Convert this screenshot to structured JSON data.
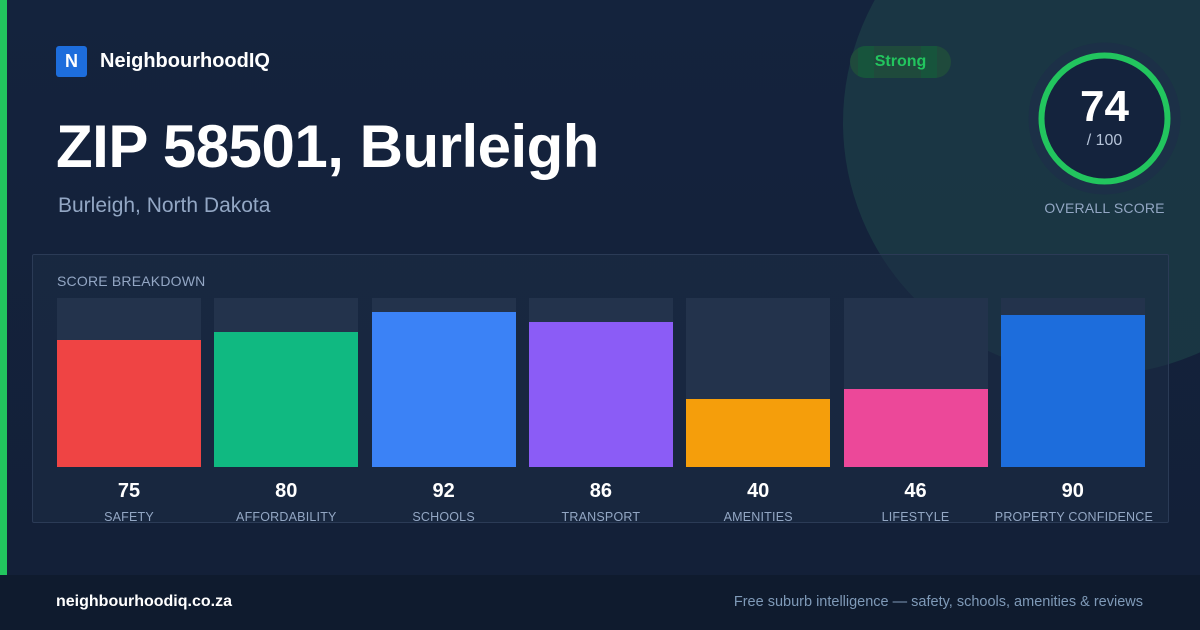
{
  "brand": {
    "logo_letter": "N",
    "name": "NeighbourhoodIQ"
  },
  "header": {
    "title": "ZIP 58501, Burleigh",
    "subtitle": "Burleigh, North Dakota"
  },
  "badge": {
    "label": "Strong"
  },
  "overall": {
    "value": 74,
    "value_text": "74",
    "max_text": "/ 100",
    "max": 100,
    "label": "OVERALL SCORE",
    "ring_color": "#22c55e"
  },
  "breakdown": {
    "title": "SCORE BREAKDOWN"
  },
  "chart_data": {
    "type": "bar",
    "title": "SCORE BREAKDOWN",
    "categories": [
      "SAFETY",
      "AFFORDABILITY",
      "SCHOOLS",
      "TRANSPORT",
      "AMENITIES",
      "LIFESTYLE",
      "PROPERTY CONFIDENCE"
    ],
    "values": [
      75,
      80,
      92,
      86,
      40,
      46,
      90
    ],
    "value_labels": [
      "75",
      "80",
      "92",
      "86",
      "40",
      "46",
      "90"
    ],
    "colors": [
      "#ef4444",
      "#10b981",
      "#3b82f6",
      "#8b5cf6",
      "#f59e0b",
      "#ec4899",
      "#1d6ddc"
    ],
    "ylim": [
      0,
      100
    ],
    "grid": false
  },
  "footer": {
    "url": "neighbourhoodiq.co.za",
    "tagline": "Free suburb intelligence — safety, schools, amenities & reviews"
  }
}
